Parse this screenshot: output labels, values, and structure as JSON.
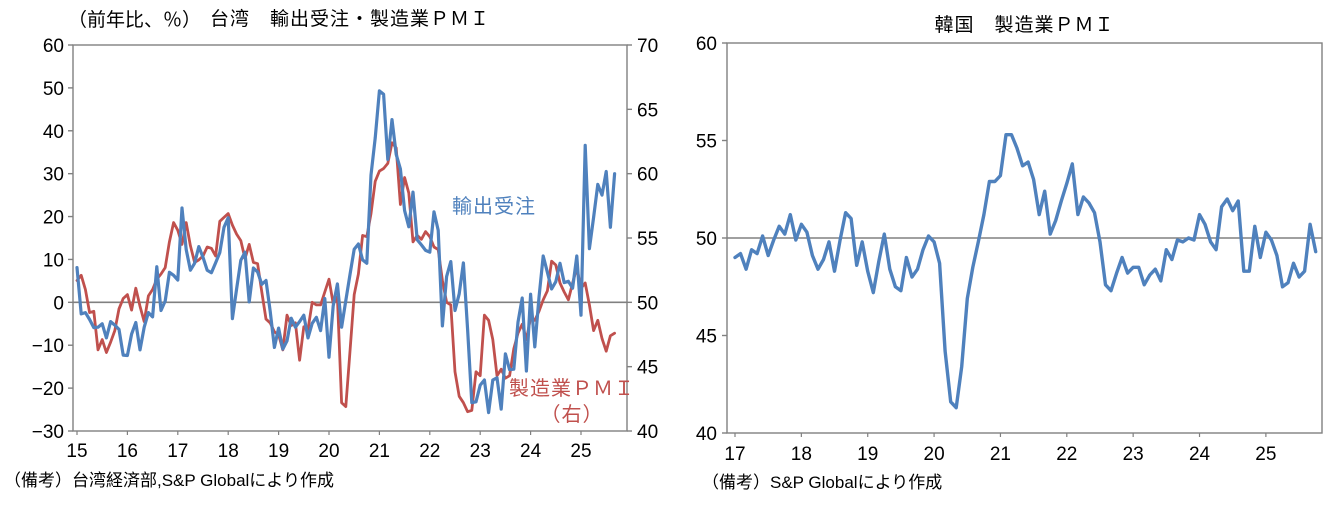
{
  "page": {
    "background": "#ffffff",
    "grid_color": "#808080",
    "axis_color": "#808080"
  },
  "chart_data": [
    {
      "type": "line",
      "title": "台湾　輸出受注・製造業ＰＭＩ",
      "unit_label": "（前年比、％）",
      "note": "（備考）台湾経済部,S&P Globalにより作成",
      "left_axis": {
        "min": -30,
        "max": 60,
        "step": 10,
        "ticks": [
          60,
          50,
          40,
          30,
          20,
          10,
          0,
          -10,
          -20,
          -30
        ]
      },
      "right_axis": {
        "min": 40,
        "max": 70,
        "step": 5,
        "ticks": [
          70,
          65,
          60,
          55,
          50,
          45,
          40
        ]
      },
      "x_axis": {
        "start": "2015-01",
        "end": "2025-09",
        "tick_labels": [
          "15",
          "16",
          "17",
          "18",
          "19",
          "20",
          "21",
          "22",
          "23",
          "24",
          "25"
        ]
      },
      "gridline_at_left_value": 0,
      "series": [
        {
          "name": "輸出受注",
          "axis": "left",
          "color": "#4F81BD",
          "values": [
            8.1,
            -2.7,
            -2.4,
            -4.0,
            -5.9,
            -5.8,
            -5.0,
            -8.3,
            -4.5,
            -5.3,
            -6.3,
            -12.3,
            -12.4,
            -7.4,
            -4.7,
            -11.1,
            -5.8,
            -2.4,
            -3.4,
            8.3,
            -1.9,
            0.3,
            7.0,
            6.3,
            5.2,
            22.0,
            12.3,
            7.5,
            9.1,
            13.0,
            10.5,
            7.5,
            6.9,
            9.2,
            11.6,
            17.5,
            19.7,
            -3.8,
            3.1,
            9.8,
            11.7,
            0.1,
            8.0,
            7.1,
            4.2,
            5.1,
            -2.1,
            -10.5,
            -6.0,
            -10.9,
            -9.0,
            -3.7,
            -5.8,
            -4.5,
            -3.0,
            -8.3,
            -4.9,
            -3.5,
            -6.6,
            0.9,
            -12.8,
            -0.8,
            4.3,
            -5.8,
            0.4,
            6.5,
            12.4,
            13.6,
            9.9,
            9.1,
            29.7,
            38.3,
            49.3,
            48.5,
            33.3,
            42.6,
            34.5,
            31.1,
            21.4,
            17.6,
            25.7,
            14.6,
            13.4,
            12.1,
            11.7,
            21.1,
            16.8,
            -5.5,
            6.0,
            9.5,
            -1.9,
            2.0,
            9.2,
            -6.3,
            -23.4,
            -23.2,
            -19.3,
            -18.1,
            -25.7,
            -18.1,
            -17.6,
            -24.9,
            -12.0,
            -15.7,
            -15.6,
            -4.6,
            1.0,
            -16.0,
            1.9,
            -10.4,
            1.2,
            10.8,
            7.0,
            3.1,
            4.8,
            9.1,
            4.6,
            4.9,
            3.3,
            10.8,
            -3.0,
            36.6,
            12.5,
            19.8,
            27.5,
            25.0,
            30.5,
            17.5,
            30.0
          ]
        },
        {
          "name": "製造業ＰＭＩ（右）",
          "label_line1": "製造業ＰＭＩ",
          "label_line2": "（右）",
          "axis": "right",
          "color": "#C0504D",
          "values": [
            51.7,
            52.1,
            51.0,
            49.2,
            49.3,
            46.3,
            47.1,
            46.1,
            46.9,
            47.8,
            49.5,
            50.3,
            50.6,
            49.4,
            51.1,
            49.7,
            48.5,
            50.5,
            51.0,
            51.8,
            52.2,
            52.7,
            54.7,
            56.2,
            55.6,
            54.5,
            56.2,
            54.4,
            53.1,
            53.3,
            53.6,
            54.3,
            54.2,
            53.6,
            56.3,
            56.6,
            56.9,
            56.0,
            55.3,
            54.8,
            53.4,
            54.5,
            53.1,
            53.0,
            50.8,
            48.7,
            48.4,
            47.7,
            47.5,
            46.3,
            49.0,
            48.2,
            48.4,
            45.5,
            48.1,
            47.9,
            50.0,
            49.8,
            49.8,
            50.8,
            51.8,
            49.9,
            50.4,
            42.2,
            41.9,
            46.2,
            50.6,
            52.2,
            55.2,
            55.1,
            56.9,
            59.4,
            60.2,
            60.4,
            60.8,
            62.4,
            62.0,
            57.6,
            59.7,
            58.5,
            54.7,
            55.2,
            54.9,
            55.5,
            55.1,
            54.3,
            54.1,
            51.7,
            50.0,
            49.8,
            44.6,
            42.7,
            42.2,
            41.5,
            41.6,
            44.6,
            44.3,
            49.0,
            48.6,
            47.1,
            44.3,
            44.8,
            44.1,
            44.3,
            46.4,
            47.6,
            48.3,
            47.1,
            48.8,
            48.6,
            49.3,
            50.2,
            50.9,
            53.2,
            52.9,
            51.5,
            50.8,
            50.2,
            51.5,
            52.7,
            51.1,
            51.5,
            49.8,
            47.8,
            48.6,
            47.2,
            46.2,
            47.4,
            47.6
          ]
        }
      ]
    },
    {
      "type": "line",
      "title": "韓国　製造業ＰＭＩ",
      "note": "（備考）S&P Globalにより作成",
      "y_axis": {
        "min": 40,
        "max": 60,
        "step": 5,
        "ticks": [
          60,
          55,
          50,
          45,
          40
        ]
      },
      "x_axis": {
        "start": "2017-01",
        "end": "2025-10",
        "tick_labels": [
          "17",
          "18",
          "19",
          "20",
          "21",
          "22",
          "23",
          "24",
          "25"
        ]
      },
      "gridline_at_value": 50,
      "series": [
        {
          "name": "製造業ＰＭＩ",
          "color": "#4F81BD",
          "values": [
            49.0,
            49.2,
            48.4,
            49.4,
            49.2,
            50.1,
            49.1,
            49.9,
            50.6,
            50.2,
            51.2,
            49.9,
            50.7,
            50.3,
            49.1,
            48.4,
            48.9,
            49.8,
            48.3,
            49.9,
            51.3,
            51.0,
            48.6,
            49.8,
            48.3,
            47.2,
            48.8,
            50.2,
            48.4,
            47.5,
            47.3,
            49.0,
            48.0,
            48.4,
            49.4,
            50.1,
            49.8,
            48.7,
            44.2,
            41.6,
            41.3,
            43.4,
            46.9,
            48.5,
            49.8,
            51.2,
            52.9,
            52.9,
            53.2,
            55.3,
            55.3,
            54.6,
            53.7,
            53.9,
            53.0,
            51.2,
            52.4,
            50.2,
            50.9,
            51.9,
            52.8,
            53.8,
            51.2,
            52.1,
            51.8,
            51.3,
            49.8,
            47.6,
            47.3,
            48.2,
            49.0,
            48.2,
            48.5,
            48.5,
            47.6,
            48.1,
            48.4,
            47.8,
            49.4,
            48.9,
            49.9,
            49.8,
            50.0,
            49.9,
            51.2,
            50.7,
            49.8,
            49.4,
            51.6,
            52.0,
            51.4,
            51.9,
            48.3,
            48.3,
            50.6,
            49.0,
            50.3,
            49.9,
            49.1,
            47.5,
            47.7,
            48.7,
            48.0,
            48.3,
            50.7,
            49.3
          ]
        }
      ]
    }
  ]
}
